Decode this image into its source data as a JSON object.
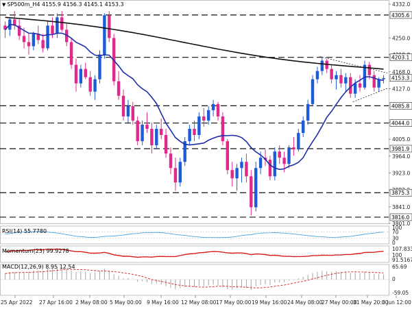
{
  "chart_data": {
    "type": "candlestick",
    "symbol": "SP500m_H4",
    "header_ohlc": "SP500m_H4 4155.9 4156.3 4145.1 4153.3",
    "x_ticks": [
      "25 Apr 2022",
      "27 Apr 16:00",
      "2 May 08:00",
      "5 May 00:00",
      "9 May 16:00",
      "12 May 08:00",
      "17 May 00:00",
      "19 May 16:00",
      "24 May 08:00",
      "27 May 00:00",
      "31 May 20:00",
      "3 Jun 12:00"
    ],
    "y_ticks": [
      4332.0,
      4250.0,
      4210.0,
      4168.0,
      4127.0,
      4046.0,
      4005.0,
      3964.0,
      3923.0,
      3882.0,
      3841.0,
      3801.0
    ],
    "ylim": [
      3801.0,
      4332.0
    ],
    "horizontal_levels": [
      4305.6,
      4203.1,
      4085.8,
      4044.0,
      3981.9,
      3875.3,
      3816.0
    ],
    "current_price": 4153.3,
    "candles": [
      [
        4280,
        4290,
        4250,
        4270
      ],
      [
        4270,
        4300,
        4255,
        4295
      ],
      [
        4295,
        4315,
        4270,
        4280
      ],
      [
        4280,
        4295,
        4245,
        4255
      ],
      [
        4255,
        4275,
        4225,
        4240
      ],
      [
        4240,
        4260,
        4210,
        4230
      ],
      [
        4230,
        4265,
        4220,
        4260
      ],
      [
        4260,
        4280,
        4235,
        4245
      ],
      [
        4245,
        4260,
        4215,
        4225
      ],
      [
        4225,
        4290,
        4220,
        4280
      ],
      [
        4280,
        4300,
        4250,
        4260
      ],
      [
        4260,
        4310,
        4250,
        4300
      ],
      [
        4300,
        4315,
        4265,
        4270
      ],
      [
        4270,
        4285,
        4230,
        4240
      ],
      [
        4240,
        4250,
        4175,
        4185
      ],
      [
        4185,
        4200,
        4120,
        4140
      ],
      [
        4140,
        4185,
        4130,
        4175
      ],
      [
        4175,
        4190,
        4150,
        4155
      ],
      [
        4155,
        4170,
        4110,
        4120
      ],
      [
        4120,
        4160,
        4100,
        4150
      ],
      [
        4150,
        4220,
        4140,
        4210
      ],
      [
        4210,
        4310,
        4200,
        4305
      ],
      [
        4305,
        4315,
        4240,
        4250
      ],
      [
        4250,
        4260,
        4135,
        4145
      ],
      [
        4145,
        4170,
        4100,
        4110
      ],
      [
        4110,
        4125,
        4050,
        4060
      ],
      [
        4060,
        4100,
        4045,
        4085
      ],
      [
        4085,
        4095,
        4040,
        4050
      ],
      [
        4050,
        4060,
        3990,
        4000
      ],
      [
        4000,
        4050,
        3990,
        4040
      ],
      [
        4040,
        4070,
        4020,
        4030
      ],
      [
        4030,
        4045,
        3970,
        3990
      ],
      [
        3990,
        4040,
        3980,
        4030
      ],
      [
        4030,
        4055,
        4005,
        4015
      ],
      [
        4015,
        4030,
        3960,
        3970
      ],
      [
        3970,
        3985,
        3920,
        3935
      ],
      [
        3935,
        3960,
        3880,
        3900
      ],
      [
        3900,
        3960,
        3890,
        3950
      ],
      [
        3950,
        4010,
        3940,
        4000
      ],
      [
        4000,
        4040,
        3990,
        4030
      ],
      [
        4030,
        4050,
        4000,
        4015
      ],
      [
        4015,
        4070,
        4005,
        4060
      ],
      [
        4060,
        4080,
        4035,
        4050
      ],
      [
        4050,
        4085,
        4040,
        4075
      ],
      [
        4075,
        4100,
        4060,
        4090
      ],
      [
        4090,
        4095,
        4050,
        4060
      ],
      [
        4060,
        4070,
        3990,
        4000
      ],
      [
        4000,
        4005,
        3920,
        3930
      ],
      [
        3930,
        3950,
        3890,
        3910
      ],
      [
        3910,
        3945,
        3880,
        3935
      ],
      [
        3935,
        3960,
        3900,
        3950
      ],
      [
        3950,
        3970,
        3900,
        3915
      ],
      [
        3915,
        3930,
        3820,
        3840
      ],
      [
        3840,
        3950,
        3830,
        3935
      ],
      [
        3935,
        3975,
        3920,
        3960
      ],
      [
        3960,
        3980,
        3940,
        3955
      ],
      [
        3955,
        3965,
        3905,
        3915
      ],
      [
        3915,
        3985,
        3905,
        3975
      ],
      [
        3975,
        3990,
        3945,
        3960
      ],
      [
        3960,
        3975,
        3925,
        3945
      ],
      [
        3945,
        3990,
        3935,
        3985
      ],
      [
        3985,
        4010,
        3965,
        3980
      ],
      [
        3980,
        4030,
        3975,
        4020
      ],
      [
        4020,
        4060,
        4010,
        4050
      ],
      [
        4050,
        4100,
        4040,
        4090
      ],
      [
        4090,
        4160,
        4085,
        4150
      ],
      [
        4150,
        4180,
        4140,
        4170
      ],
      [
        4170,
        4205,
        4160,
        4195
      ],
      [
        4195,
        4200,
        4165,
        4175
      ],
      [
        4175,
        4185,
        4140,
        4150
      ],
      [
        4150,
        4170,
        4125,
        4160
      ],
      [
        4160,
        4175,
        4130,
        4140
      ],
      [
        4140,
        4165,
        4120,
        4155
      ],
      [
        4155,
        4165,
        4105,
        4115
      ],
      [
        4115,
        4150,
        4105,
        4140
      ],
      [
        4140,
        4160,
        4120,
        4130
      ],
      [
        4130,
        4195,
        4125,
        4185
      ],
      [
        4185,
        4192,
        4150,
        4160
      ],
      [
        4160,
        4170,
        4120,
        4130
      ],
      [
        4130,
        4155,
        4120,
        4150
      ],
      [
        4150,
        4160,
        4140,
        4153
      ]
    ],
    "rsi": {
      "label": "RSI(14) 55.7780",
      "levels": [
        100,
        70,
        30,
        0
      ]
    },
    "momentum": {
      "label": "Momentum(23) 99.9278",
      "ticks": [
        107.8333,
        100,
        91.5167
      ]
    },
    "macd": {
      "label": "MACD(12,26,9) 8.95 12.54",
      "ticks": [
        65.69,
        0,
        -59.05
      ]
    }
  }
}
